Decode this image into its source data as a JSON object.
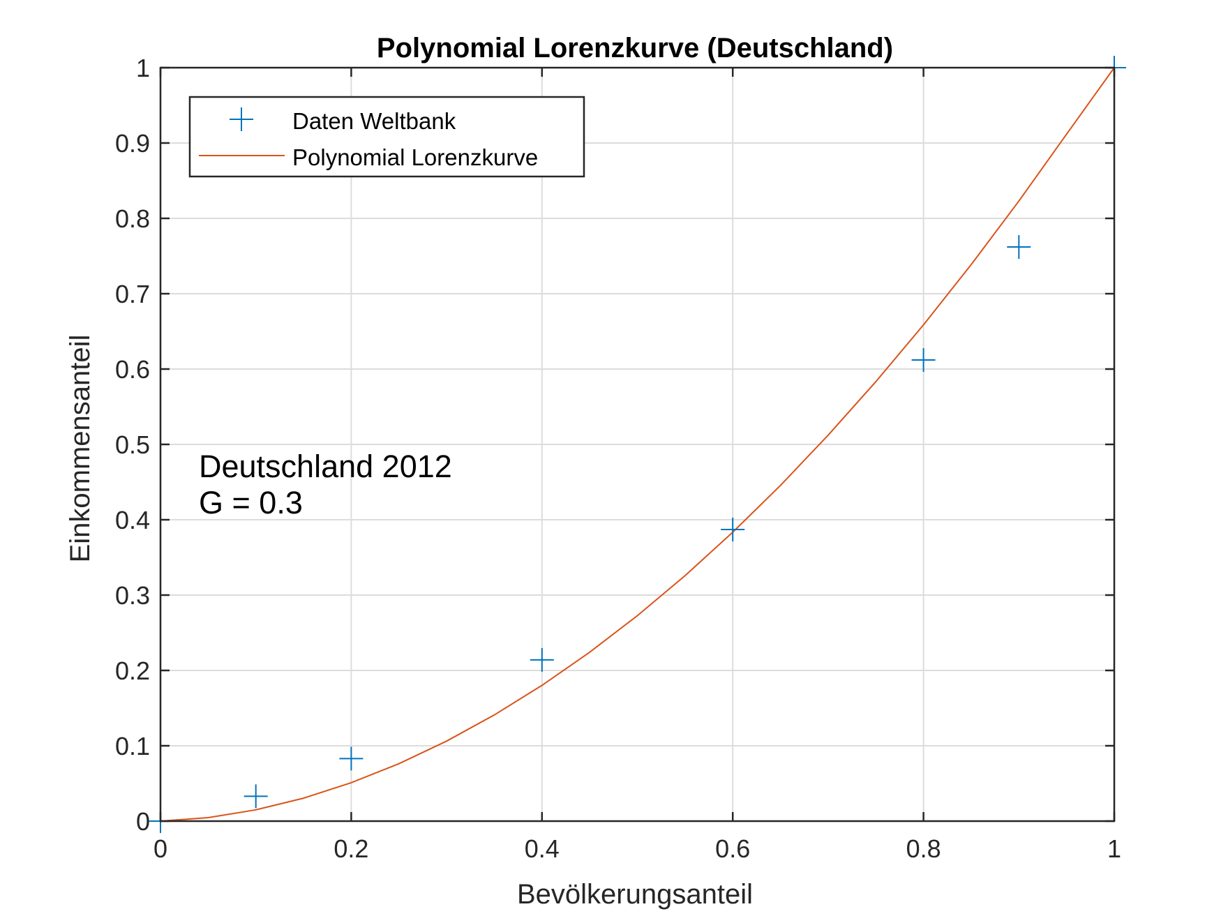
{
  "chart_data": {
    "type": "line",
    "title": "Polynomial Lorenzkurve (Deutschland)",
    "xlabel": "Bevölkerungsanteil",
    "ylabel": "Einkommensanteil",
    "xlim": [
      0,
      1
    ],
    "ylim": [
      0,
      1
    ],
    "xticks": [
      0,
      0.2,
      0.4,
      0.6,
      0.8,
      1
    ],
    "xtick_labels": [
      "0",
      "0.2",
      "0.4",
      "0.6",
      "0.8",
      "1"
    ],
    "yticks": [
      0,
      0.1,
      0.2,
      0.3,
      0.4,
      0.5,
      0.6,
      0.7,
      0.8,
      0.9,
      1
    ],
    "ytick_labels": [
      "0",
      "0.1",
      "0.2",
      "0.3",
      "0.4",
      "0.5",
      "0.6",
      "0.7",
      "0.8",
      "0.9",
      "1"
    ],
    "grid": true,
    "legend_position": "top-left",
    "series": [
      {
        "name": "Daten Weltbank",
        "kind": "scatter",
        "marker": "plus",
        "color": "#0072BD",
        "x": [
          0,
          0.1,
          0.2,
          0.4,
          0.6,
          0.8,
          0.9,
          1
        ],
        "y": [
          0,
          0.033,
          0.083,
          0.214,
          0.387,
          0.612,
          0.762,
          1
        ]
      },
      {
        "name": "Polynomial Lorenzkurve",
        "kind": "line",
        "color": "#D95319",
        "x": [
          0,
          0.05,
          0.1,
          0.15,
          0.2,
          0.25,
          0.3,
          0.35,
          0.4,
          0.45,
          0.5,
          0.55,
          0.6,
          0.65,
          0.7,
          0.75,
          0.8,
          0.85,
          0.9,
          0.95,
          1
        ],
        "y": [
          0,
          0.0046,
          0.015,
          0.0305,
          0.051,
          0.0762,
          0.1062,
          0.1409,
          0.1802,
          0.2242,
          0.2727,
          0.3258,
          0.3834,
          0.4456,
          0.5122,
          0.5832,
          0.6587,
          0.7387,
          0.823,
          0.9117,
          1
        ]
      }
    ],
    "annotations": [
      "Deutschland  2012",
      "G =  0.3"
    ]
  }
}
